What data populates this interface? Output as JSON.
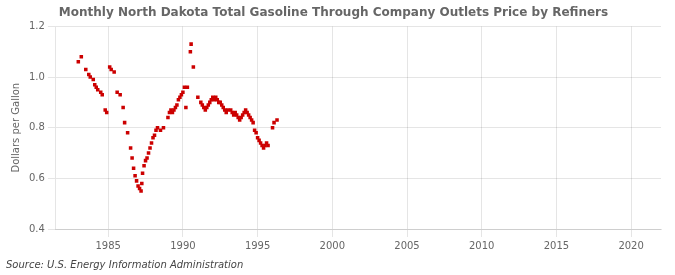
{
  "chart_data": {
    "type": "scatter",
    "title": "Monthly North Dakota Total Gasoline Through Company Outlets Price by Refiners",
    "y_label": "Dollars per Gallon",
    "annotations": [
      "Source: U.S. Energy Information Administration"
    ],
    "color": "#cc0000",
    "marker": "square",
    "grid": true,
    "xlim": [
      1981.5,
      2022
    ],
    "ylim": [
      0.4,
      1.2
    ],
    "xticks": [
      1985,
      1990,
      1995,
      2000,
      2005,
      2010,
      2015,
      2020
    ],
    "yticks": [
      0.4,
      0.6,
      0.8,
      {
        "value": 1.0,
        "label": "1.0"
      },
      1.2
    ],
    "x": [
      1983.0,
      1983.2,
      1983.5,
      1983.7,
      1983.8,
      1984.0,
      1984.1,
      1984.2,
      1984.3,
      1984.5,
      1984.6,
      1984.8,
      1984.9,
      1985.1,
      1985.2,
      1985.4,
      1985.6,
      1985.8,
      1986.0,
      1986.1,
      1986.3,
      1986.5,
      1986.6,
      1986.7,
      1986.8,
      1986.9,
      1987.0,
      1987.1,
      1987.2,
      1987.25,
      1987.3,
      1987.4,
      1987.5,
      1987.6,
      1987.7,
      1987.8,
      1987.9,
      1988.0,
      1988.1,
      1988.2,
      1988.3,
      1988.5,
      1988.7,
      1989.0,
      1989.1,
      1989.2,
      1989.3,
      1989.4,
      1989.5,
      1989.6,
      1989.7,
      1989.8,
      1989.9,
      1990.0,
      1990.1,
      1990.2,
      1990.3,
      1990.5,
      1990.55,
      1990.7,
      1991.0,
      1991.2,
      1991.3,
      1991.4,
      1991.5,
      1991.6,
      1991.7,
      1991.8,
      1991.9,
      1992.0,
      1992.1,
      1992.2,
      1992.3,
      1992.4,
      1992.5,
      1992.6,
      1992.7,
      1992.8,
      1992.9,
      1993.0,
      1993.2,
      1993.3,
      1993.4,
      1993.5,
      1993.6,
      1993.7,
      1993.8,
      1993.9,
      1994.0,
      1994.1,
      1994.2,
      1994.3,
      1994.4,
      1994.5,
      1994.6,
      1994.7,
      1994.8,
      1994.9,
      1995.0,
      1995.1,
      1995.2,
      1995.3,
      1995.4,
      1995.5,
      1995.6,
      1995.7,
      1996.0,
      1996.1,
      1996.3
    ],
    "values": [
      1.06,
      1.08,
      1.03,
      1.01,
      1.0,
      0.99,
      0.97,
      0.96,
      0.95,
      0.94,
      0.93,
      0.87,
      0.86,
      1.04,
      1.03,
      1.02,
      0.94,
      0.93,
      0.88,
      0.82,
      0.78,
      0.72,
      0.68,
      0.64,
      0.61,
      0.59,
      0.57,
      0.56,
      0.55,
      0.58,
      0.62,
      0.65,
      0.67,
      0.68,
      0.7,
      0.72,
      0.74,
      0.76,
      0.77,
      0.79,
      0.8,
      0.79,
      0.8,
      0.84,
      0.86,
      0.87,
      0.86,
      0.87,
      0.88,
      0.89,
      0.91,
      0.92,
      0.93,
      0.94,
      0.96,
      0.88,
      0.96,
      1.1,
      1.13,
      1.04,
      0.92,
      0.9,
      0.89,
      0.88,
      0.87,
      0.88,
      0.89,
      0.9,
      0.91,
      0.92,
      0.91,
      0.92,
      0.91,
      0.9,
      0.9,
      0.89,
      0.88,
      0.87,
      0.86,
      0.87,
      0.87,
      0.86,
      0.85,
      0.86,
      0.85,
      0.84,
      0.83,
      0.84,
      0.85,
      0.86,
      0.87,
      0.86,
      0.85,
      0.84,
      0.83,
      0.82,
      0.79,
      0.78,
      0.76,
      0.75,
      0.74,
      0.73,
      0.72,
      0.73,
      0.74,
      0.73,
      0.8,
      0.82,
      0.83
    ]
  }
}
